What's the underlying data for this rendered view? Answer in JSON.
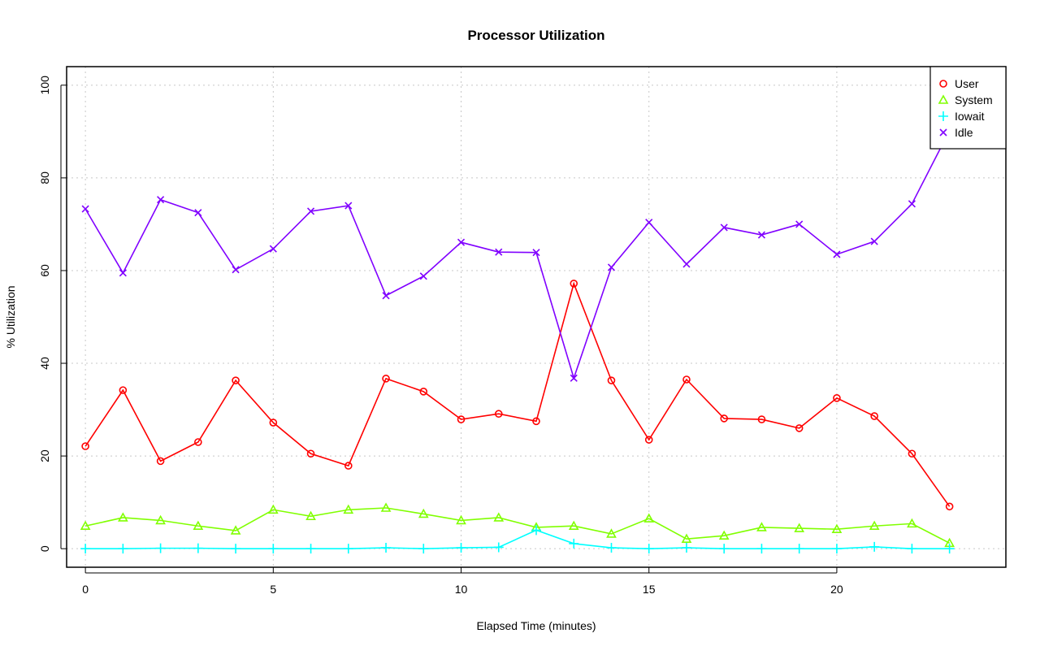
{
  "chart_data": {
    "type": "line",
    "title": "Processor Utilization",
    "xlabel": "Elapsed Time (minutes)",
    "ylabel": "% Utilization",
    "xlim": [
      -0.5,
      24.5
    ],
    "ylim": [
      -4,
      104
    ],
    "xticks": [
      0,
      5,
      10,
      15,
      20
    ],
    "yticks": [
      0,
      20,
      40,
      60,
      80,
      100
    ],
    "grid": true,
    "legend_position": "top-right",
    "x": [
      0,
      1,
      2,
      3,
      4,
      5,
      6,
      7,
      8,
      9,
      10,
      11,
      12,
      13,
      14,
      15,
      16,
      17,
      18,
      19,
      20,
      21,
      22,
      23
    ],
    "series": [
      {
        "name": "User",
        "color": "#ff0000",
        "marker": "circle",
        "values": [
          22.1,
          34.2,
          18.9,
          23.0,
          36.3,
          27.2,
          20.5,
          17.9,
          36.7,
          33.9,
          27.9,
          29.1,
          27.5,
          57.2,
          36.3,
          23.5,
          36.5,
          28.1,
          27.9,
          26.0,
          32.5,
          28.6,
          20.5,
          9.1
        ]
      },
      {
        "name": "System",
        "color": "#80ff00",
        "marker": "triangle",
        "values": [
          4.9,
          6.7,
          6.1,
          4.9,
          3.9,
          8.4,
          7.0,
          8.4,
          8.8,
          7.5,
          6.1,
          6.7,
          4.6,
          4.9,
          3.2,
          6.5,
          2.1,
          2.8,
          4.6,
          4.4,
          4.2,
          4.9,
          5.4,
          1.2
        ]
      },
      {
        "name": "Iowait",
        "color": "#00ffff",
        "marker": "plus",
        "values": [
          0,
          0,
          0.1,
          0.1,
          0,
          0,
          0,
          0,
          0.2,
          0,
          0.2,
          0.3,
          4.0,
          1.1,
          0.2,
          0,
          0.2,
          0,
          0,
          0,
          0,
          0.4,
          0,
          0
        ]
      },
      {
        "name": "Idle",
        "color": "#8000ff",
        "marker": "cross",
        "values": [
          73.3,
          59.5,
          75.3,
          72.5,
          60.2,
          64.7,
          72.8,
          74.0,
          54.6,
          58.8,
          66.1,
          64.0,
          63.9,
          36.8,
          60.7,
          70.4,
          61.4,
          69.3,
          67.7,
          70.0,
          63.5,
          66.3,
          74.4,
          90.2
        ]
      }
    ]
  }
}
